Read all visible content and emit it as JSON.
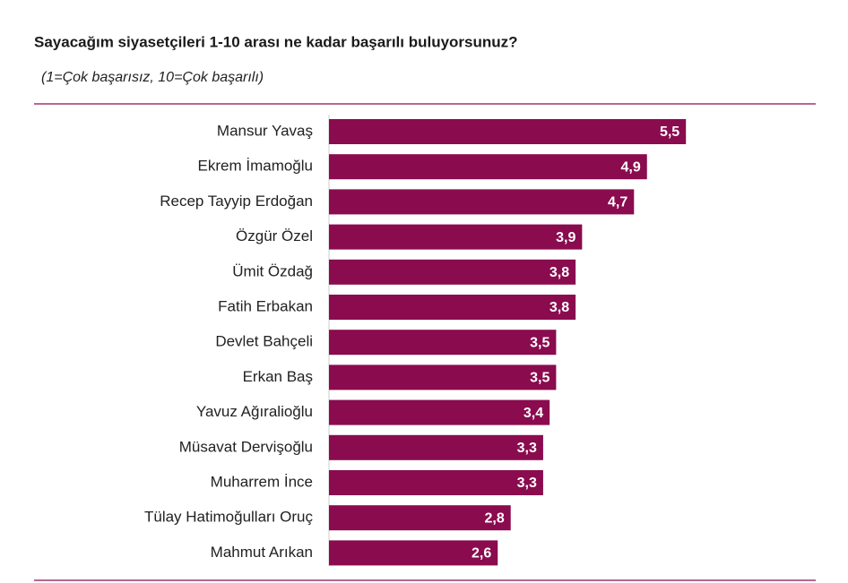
{
  "chart_data": {
    "type": "bar",
    "orientation": "horizontal",
    "title": "Sayacağım siyasetçileri 1-10 arası ne kadar başarılı buluyorsunuz?",
    "subtitle": "(1=Çok başarısız, 10=Çok başarılı)",
    "categories": [
      "Mansur Yavaş",
      "Ekrem İmamoğlu",
      "Recep Tayyip Erdoğan",
      "Özgür Özel",
      "Ümit Özdağ",
      "Fatih Erbakan",
      "Devlet Bahçeli",
      "Erkan Baş",
      "Yavuz Ağıralioğlu",
      "Müsavat Dervişoğlu",
      "Muharrem İnce",
      "Tülay Hatimoğulları Oruç",
      "Mahmut Arıkan"
    ],
    "values": [
      5.5,
      4.9,
      4.7,
      3.9,
      3.8,
      3.8,
      3.5,
      3.5,
      3.4,
      3.3,
      3.3,
      2.8,
      2.6
    ],
    "value_labels": [
      "5,5",
      "4,9",
      "4,7",
      "3,9",
      "3,8",
      "3,8",
      "3,5",
      "3,5",
      "3,4",
      "3,3",
      "3,3",
      "2,8",
      "2,6"
    ],
    "color": "#8a0b4e"
  }
}
